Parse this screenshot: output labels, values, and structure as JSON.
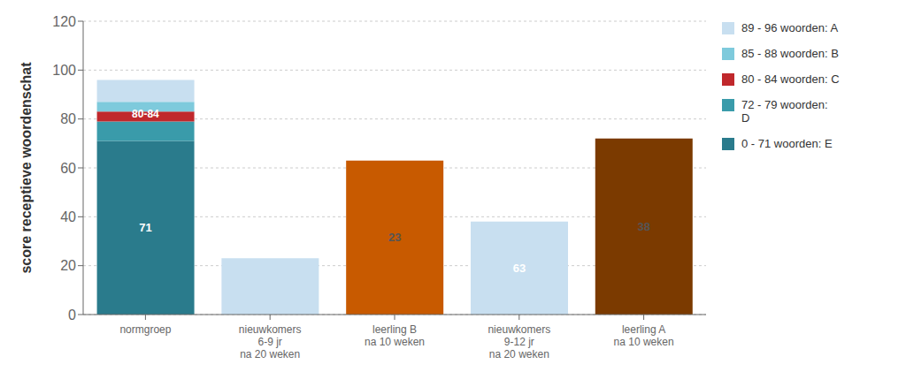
{
  "chart_data": {
    "type": "bar",
    "stacked": true,
    "categories": [
      "normgroep",
      "nieuwkomers\n6-9 jr\nna 20 weken",
      "leerling B\nna 10  weken",
      "nieuwkomers\n9-12 jr\nna 20 weken",
      "leerling A\nna 10  weken"
    ],
    "series": [
      {
        "name": "0 - 71 woorden: E",
        "color": "#2A7B8C",
        "values": [
          71,
          0,
          0,
          0,
          0
        ],
        "data_labels": true
      },
      {
        "name": "72 - 79 woorden:\nD",
        "color": "#3A9BAA",
        "values": [
          8,
          0,
          0,
          0,
          0
        ]
      },
      {
        "name": "80 - 84 woorden: C",
        "color": "#C0282C",
        "values": [
          4,
          0,
          0,
          0,
          0
        ]
      },
      {
        "name": "85 - 88 woorden: B",
        "color": "#7ECADC",
        "values": [
          4,
          0,
          0,
          0,
          0
        ]
      },
      {
        "name": "89 - 96 woorden: A",
        "color": "#C8DFF0",
        "values": [
          9,
          0,
          0,
          0,
          0
        ]
      },
      {
        "colors": [
          null,
          "#C8DFF0",
          "#C85A00",
          "#C8DFF0",
          "#7B3A00"
        ],
        "values": [
          null,
          23,
          63,
          38,
          72
        ],
        "data_labels": true
      }
    ],
    "ylabel": "score receptieve woordenschat",
    "ylim": [
      0,
      120
    ],
    "yticks": [
      0,
      20,
      40,
      60,
      80,
      100,
      120
    ],
    "grid": true,
    "legend": "right",
    "annotations": [
      {
        "text": "80-84",
        "x": "normgroep",
        "y": 82
      }
    ]
  }
}
